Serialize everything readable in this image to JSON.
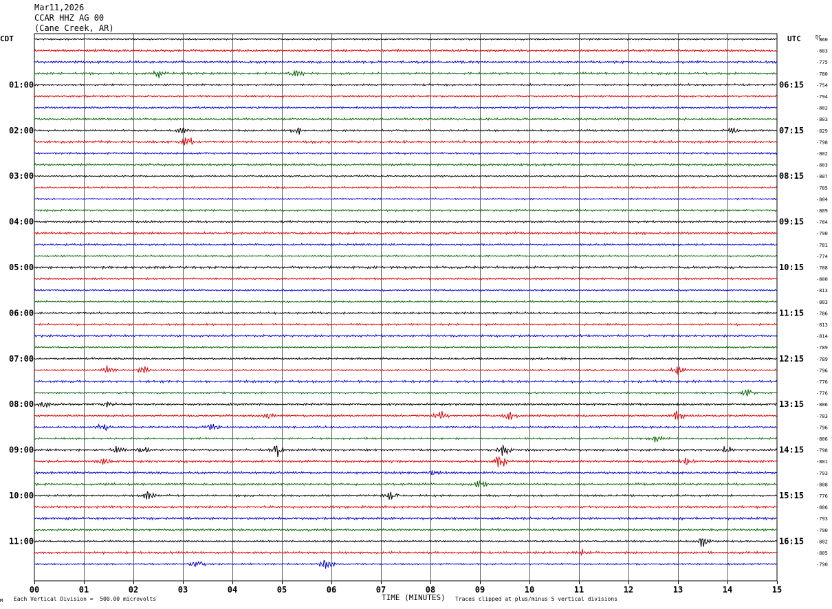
{
  "header": {
    "date": "Mar11,2026",
    "station": "CCAR HHZ AG 00",
    "location": "(Cane Creek, AR)"
  },
  "left_zone": "CDT",
  "right_zone": "UTC",
  "dc_header": "DC",
  "footer": {
    "xaxis_label": "TIME (MINUTES)",
    "scale_note": "Each Vertical Division =  500.00 microvolts",
    "clip_note": "Traces clipped at plus/minus 5 vertical divisions",
    "corner_mark": "M"
  },
  "colors": {
    "trace_cycle": [
      "#000000",
      "#dd0000",
      "#0000cc",
      "#006400"
    ],
    "grid": "#000000"
  },
  "chart_data": {
    "type": "line",
    "title": "",
    "xlabel": "TIME (MINUTES)",
    "xlim": [
      0,
      15
    ],
    "x_ticks": [
      "00",
      "01",
      "02",
      "03",
      "04",
      "05",
      "06",
      "07",
      "08",
      "09",
      "10",
      "11",
      "12",
      "13",
      "14",
      "15"
    ],
    "left_hour_labels": [
      {
        "trace": 4,
        "label": "01:00"
      },
      {
        "trace": 8,
        "label": "02:00"
      },
      {
        "trace": 12,
        "label": "03:00"
      },
      {
        "trace": 16,
        "label": "04:00"
      },
      {
        "trace": 20,
        "label": "05:00"
      },
      {
        "trace": 24,
        "label": "06:00"
      },
      {
        "trace": 28,
        "label": "07:00"
      },
      {
        "trace": 32,
        "label": "08:00"
      },
      {
        "trace": 36,
        "label": "09:00"
      },
      {
        "trace": 40,
        "label": "10:00"
      },
      {
        "trace": 44,
        "label": "11:00"
      }
    ],
    "right_hour_labels": [
      {
        "trace": 4,
        "label": "06:15"
      },
      {
        "trace": 8,
        "label": "07:15"
      },
      {
        "trace": 12,
        "label": "08:15"
      },
      {
        "trace": 16,
        "label": "09:15"
      },
      {
        "trace": 20,
        "label": "10:15"
      },
      {
        "trace": 24,
        "label": "11:15"
      },
      {
        "trace": 28,
        "label": "12:15"
      },
      {
        "trace": 32,
        "label": "13:15"
      },
      {
        "trace": 36,
        "label": "14:15"
      },
      {
        "trace": 40,
        "label": "15:15"
      },
      {
        "trace": 44,
        "label": "16:15"
      }
    ],
    "dc_offsets": [
      "-860",
      "-803",
      "-775",
      "-780",
      "-754",
      "-794",
      "-802",
      "-803",
      "-829",
      "-798",
      "-802",
      "-803",
      "-807",
      "-785",
      "-804",
      "-809",
      "-784",
      "-790",
      "-781",
      "-774",
      "-788",
      "-800",
      "-813",
      "-803",
      "-786",
      "-813",
      "-814",
      "-789",
      "-789",
      "-796",
      "-776",
      "-776",
      "-806",
      "-783",
      "-796",
      "-806",
      "-798",
      "-801",
      "-793",
      "-808",
      "-776",
      "-806",
      "-793",
      "-790",
      "-802",
      "-805",
      "-790"
    ],
    "events": [
      {
        "trace": 3,
        "minute": 2.5,
        "amp": 1.6
      },
      {
        "trace": 3,
        "minute": 5.3,
        "amp": 1.4
      },
      {
        "trace": 8,
        "minute": 3.0,
        "amp": 1.4
      },
      {
        "trace": 8,
        "minute": 5.3,
        "amp": 1.3
      },
      {
        "trace": 8,
        "minute": 14.1,
        "amp": 1.3
      },
      {
        "trace": 9,
        "minute": 3.1,
        "amp": 1.5
      },
      {
        "trace": 29,
        "minute": 1.5,
        "amp": 1.6
      },
      {
        "trace": 29,
        "minute": 2.2,
        "amp": 1.5
      },
      {
        "trace": 29,
        "minute": 13.0,
        "amp": 2.2
      },
      {
        "trace": 31,
        "minute": 14.4,
        "amp": 1.8
      },
      {
        "trace": 32,
        "minute": 0.2,
        "amp": 1.3
      },
      {
        "trace": 32,
        "minute": 1.5,
        "amp": 1.3
      },
      {
        "trace": 33,
        "minute": 4.7,
        "amp": 1.4
      },
      {
        "trace": 33,
        "minute": 8.2,
        "amp": 1.8
      },
      {
        "trace": 33,
        "minute": 9.6,
        "amp": 1.5
      },
      {
        "trace": 33,
        "minute": 13.0,
        "amp": 2.2
      },
      {
        "trace": 34,
        "minute": 1.4,
        "amp": 1.5
      },
      {
        "trace": 34,
        "minute": 3.6,
        "amp": 1.4
      },
      {
        "trace": 35,
        "minute": 12.6,
        "amp": 1.6
      },
      {
        "trace": 36,
        "minute": 1.7,
        "amp": 1.6
      },
      {
        "trace": 36,
        "minute": 2.2,
        "amp": 1.8
      },
      {
        "trace": 36,
        "minute": 4.9,
        "amp": 2.6
      },
      {
        "trace": 36,
        "minute": 9.5,
        "amp": 2.6
      },
      {
        "trace": 36,
        "minute": 14.0,
        "amp": 1.3
      },
      {
        "trace": 37,
        "minute": 1.4,
        "amp": 1.6
      },
      {
        "trace": 37,
        "minute": 9.4,
        "amp": 3.2
      },
      {
        "trace": 37,
        "minute": 13.2,
        "amp": 1.4
      },
      {
        "trace": 38,
        "minute": 8.1,
        "amp": 1.3
      },
      {
        "trace": 39,
        "minute": 9.0,
        "amp": 1.4
      },
      {
        "trace": 40,
        "minute": 2.3,
        "amp": 1.9
      },
      {
        "trace": 40,
        "minute": 7.2,
        "amp": 1.6
      },
      {
        "trace": 44,
        "minute": 13.5,
        "amp": 2.2
      },
      {
        "trace": 45,
        "minute": 11.1,
        "amp": 1.3
      },
      {
        "trace": 46,
        "minute": 3.3,
        "amp": 2.0
      },
      {
        "trace": 46,
        "minute": 5.9,
        "amp": 3.0
      }
    ]
  }
}
